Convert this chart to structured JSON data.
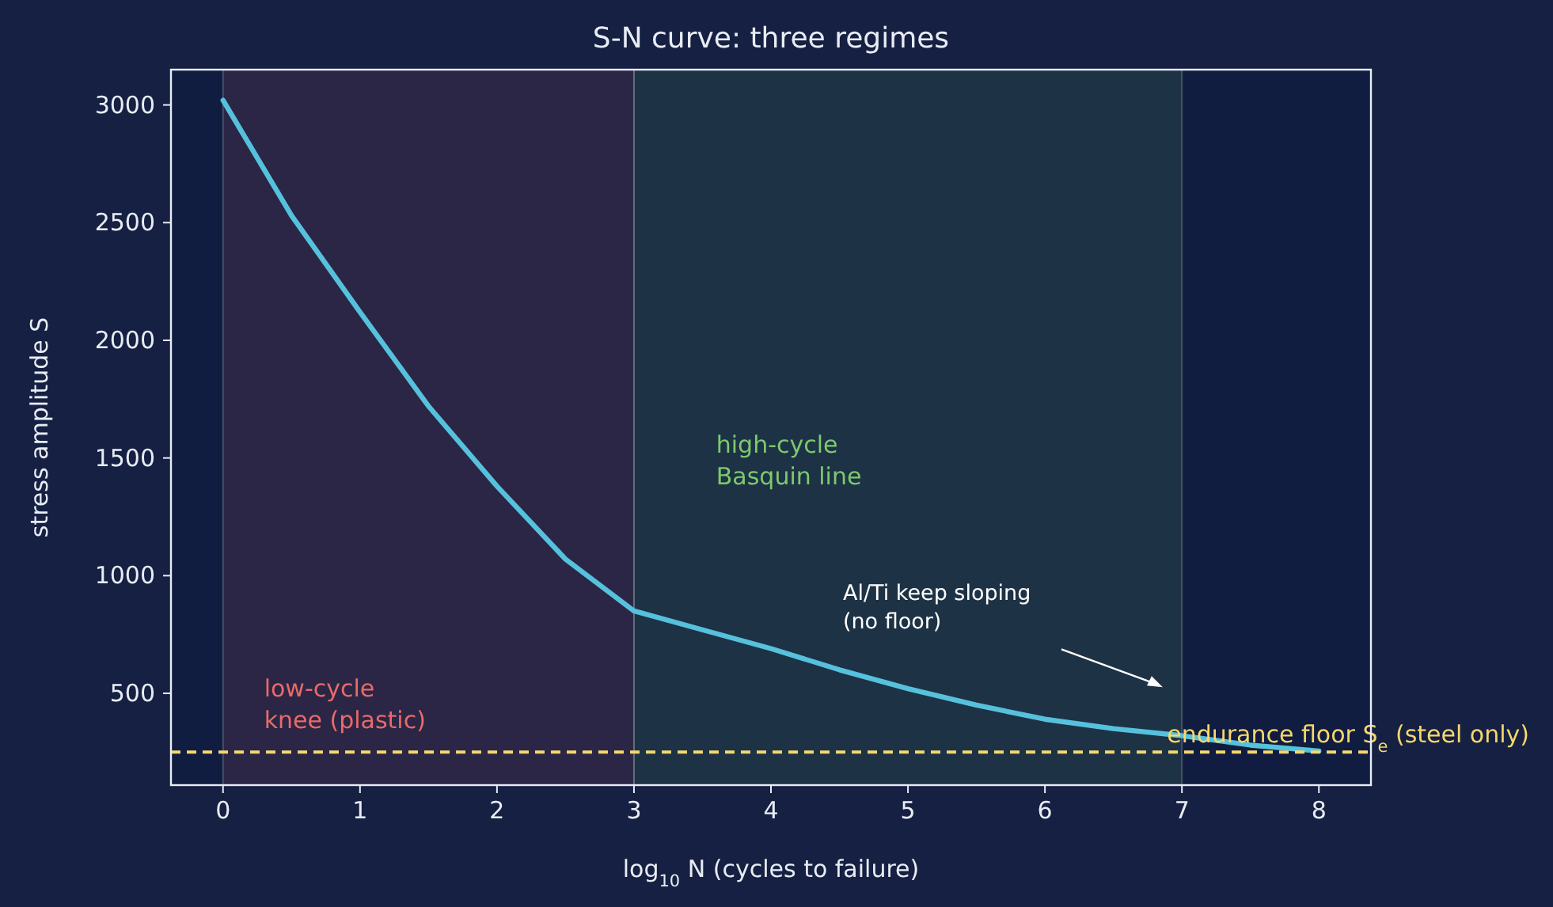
{
  "chart_data": {
    "type": "line",
    "title": "S-N curve: three regimes",
    "xlabel": "log$_{10}$ N  (cycles to failure)",
    "ylabel": "stress amplitude S",
    "x": [
      0,
      0.5,
      1,
      1.5,
      2,
      2.5,
      3,
      3.5,
      4,
      4.5,
      5,
      5.5,
      6,
      6.5,
      7,
      7.5,
      8
    ],
    "series": [
      {
        "color": "#56c1dc",
        "values": [
          3020,
          2530,
          2120,
          1720,
          1380,
          1070,
          850,
          770,
          690,
          600,
          520,
          450,
          390,
          350,
          320,
          280,
          255
        ]
      }
    ],
    "xlim": [
      -0.38,
      8.38
    ],
    "ylim": [
      110,
      3150
    ],
    "xticks": [
      0,
      1,
      2,
      3,
      4,
      5,
      6,
      7,
      8
    ],
    "yticks": [
      500,
      1000,
      1500,
      2000,
      2500,
      3000
    ],
    "bands": [
      {
        "axis": "x",
        "from": 0,
        "to": 3,
        "label": "low-cycle\nknee (plastic)",
        "color": "#e86a6a"
      },
      {
        "axis": "x",
        "from": 3,
        "to": 7,
        "label": "high-cycle\nBasquin line",
        "color": "#7dc96e"
      }
    ],
    "ref_lines": [
      {
        "axis": "y",
        "value": 250,
        "label": "endurance floor S$_{e}$ (steel only)",
        "color": "#f5d76e",
        "line_style": "dashed"
      }
    ],
    "annotations": [
      "Al/Ti keep sloping\n(no floor)"
    ],
    "grid": false,
    "marker": "none",
    "line_style": "solid"
  }
}
